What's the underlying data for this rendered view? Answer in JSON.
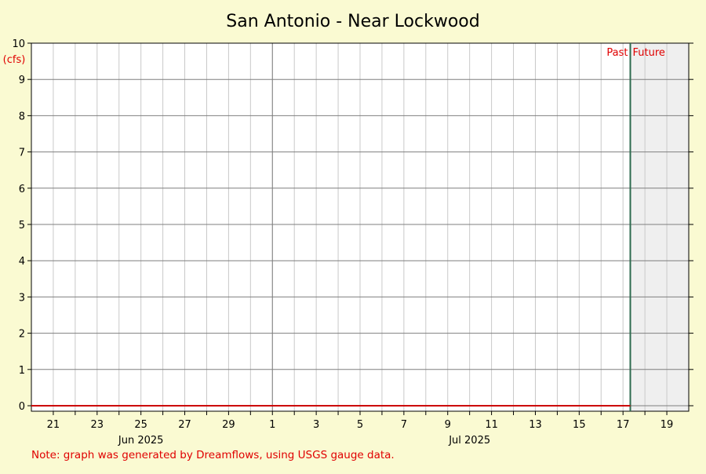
{
  "colors": {
    "background": "#fafad2",
    "plot_background": "#ffffff",
    "future_background": "#efefef",
    "grid_major": "#7f7f7f",
    "grid_minor": "#c9c9c9",
    "series": "#cc0000",
    "now_line": "#2e6b4f",
    "annotation": "#e00000",
    "text": "#000000"
  },
  "note": "Note: graph was generated by Dreamflows, using USGS gauge data.",
  "chart_data": {
    "type": "line",
    "title": "San Antonio - Near Lockwood",
    "ylabel": "(cfs)",
    "xlabel": "",
    "ylim": [
      0,
      10
    ],
    "yticks": [
      0,
      1,
      2,
      3,
      4,
      5,
      6,
      7,
      8,
      9,
      10
    ],
    "xlim": [
      "2025-06-20",
      "2025-07-20"
    ],
    "x_day_ticks": [
      {
        "date": "2025-06-21",
        "label": "21"
      },
      {
        "date": "2025-06-23",
        "label": "23"
      },
      {
        "date": "2025-06-25",
        "label": "25"
      },
      {
        "date": "2025-06-27",
        "label": "27"
      },
      {
        "date": "2025-06-29",
        "label": "29"
      },
      {
        "date": "2025-07-01",
        "label": "1"
      },
      {
        "date": "2025-07-03",
        "label": "3"
      },
      {
        "date": "2025-07-05",
        "label": "5"
      },
      {
        "date": "2025-07-07",
        "label": "7"
      },
      {
        "date": "2025-07-09",
        "label": "9"
      },
      {
        "date": "2025-07-11",
        "label": "11"
      },
      {
        "date": "2025-07-13",
        "label": "13"
      },
      {
        "date": "2025-07-15",
        "label": "15"
      },
      {
        "date": "2025-07-17",
        "label": "17"
      },
      {
        "date": "2025-07-19",
        "label": "19"
      }
    ],
    "x_month_labels": [
      {
        "date": "2025-06-25",
        "label": "Jun 2025"
      },
      {
        "date": "2025-07-10",
        "label": "Jul 2025"
      }
    ],
    "month_boundaries": [
      "2025-07-01"
    ],
    "now": "2025-07-17T08:00",
    "annotations": {
      "past": "Past",
      "future": "Future"
    },
    "series": [
      {
        "x": [
          "2025-06-20",
          "2025-07-17T08:00"
        ],
        "y": [
          0,
          0
        ]
      }
    ]
  }
}
